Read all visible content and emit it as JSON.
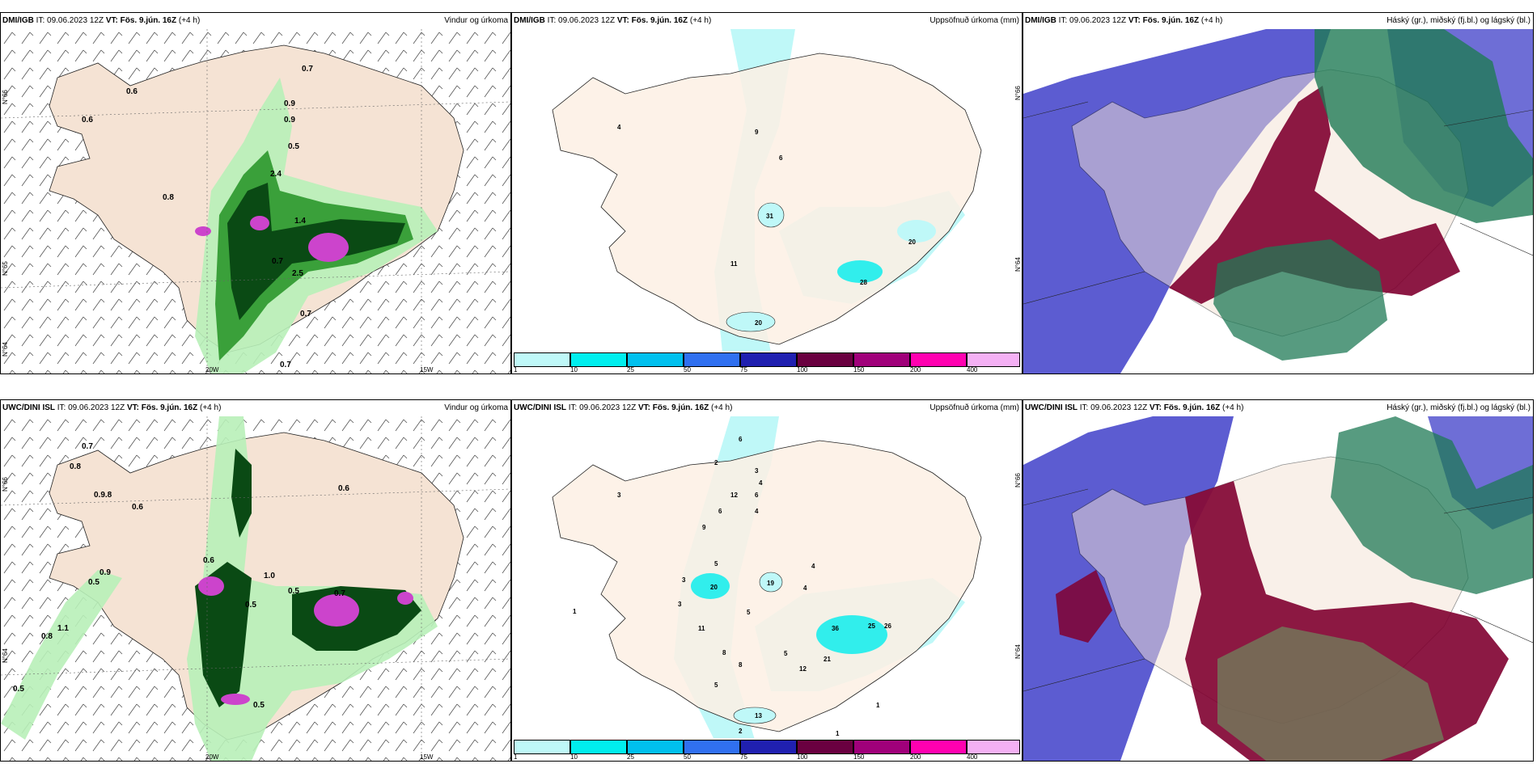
{
  "panels": [
    {
      "id": "top-left",
      "model": "DMI/IGB",
      "it": "IT: 09.06.2023 12Z",
      "vt": "VT: Fös. 9.jún. 16Z",
      "lead": "(+4 h)",
      "title": "Vindur og úrkoma",
      "labels": [
        "0.6",
        "0.6",
        "0.7",
        "0.9",
        "0.9",
        "0.5",
        "2.4",
        "0.8",
        "1.4",
        "0.7",
        "2.5",
        "0.7",
        "0.7"
      ],
      "axis": [
        "N°66",
        "N°65",
        "N°64",
        "20W",
        "15W"
      ]
    },
    {
      "id": "top-middle",
      "model": "DMI/IGB",
      "it": "IT: 09.06.2023 12Z",
      "vt": "VT: Fös. 9.jún. 16Z",
      "lead": "(+4 h)",
      "title": "Uppsöfnuð úrkoma (mm)",
      "labels": [
        "4",
        "9",
        "6",
        "31",
        "11",
        "20",
        "28",
        "20"
      ],
      "axis": [
        "N°66",
        "N°64"
      ]
    },
    {
      "id": "top-right",
      "model": "DMI/IGB",
      "it": "IT: 09.06.2023 12Z",
      "vt": "VT: Fös. 9.jún. 16Z",
      "lead": "(+4 h)",
      "title": "Háský (gr.), miðský (fj.bl.) og lágský (bl.)"
    },
    {
      "id": "bottom-left",
      "model": "UWC/DINI ISL",
      "it": "IT: 09.06.2023 12Z",
      "vt": "VT: Fös. 9.jún. 16Z",
      "lead": "(+4 h)",
      "title": "Vindur og úrkoma",
      "labels": [
        "0.7",
        "0.8",
        "0.9.8",
        "0.6",
        "0.6",
        "0.6",
        "0.9",
        "0.5",
        "1.1",
        "0.8",
        "0.5",
        "0.5",
        "0.7",
        "0.5",
        "0.5",
        "1.0"
      ],
      "axis": [
        "N°66",
        "N°64",
        "20W",
        "15W"
      ]
    },
    {
      "id": "bottom-middle",
      "model": "UWC/DINI ISL",
      "it": "IT: 09.06.2023 12Z",
      "vt": "VT: Fös. 9.jún. 16Z",
      "lead": "(+4 h)",
      "title": "Uppsöfnuð úrkoma (mm)",
      "labels": [
        "6",
        "2",
        "3",
        "4",
        "12",
        "6",
        "6",
        "4",
        "3",
        "9",
        "3",
        "5",
        "20",
        "19",
        "4",
        "3",
        "11",
        "5",
        "8",
        "36",
        "25",
        "26",
        "21",
        "12",
        "5",
        "8",
        "4",
        "5",
        "13",
        "2",
        "1",
        "1",
        "1"
      ],
      "axis": [
        "N°66",
        "N°64"
      ]
    },
    {
      "id": "bottom-right",
      "model": "UWC/DINI ISL",
      "it": "IT: 09.06.2023 12Z",
      "vt": "VT: Fös. 9.jún. 16Z",
      "lead": "(+4 h)",
      "title": "Háský (gr.), miðský (fj.bl.) og lágský (bl.)"
    }
  ],
  "colorbar": {
    "ticks": [
      "1",
      "10",
      "25",
      "50",
      "75",
      "100",
      "150",
      "200",
      "400"
    ],
    "colors": [
      "#bff8f8",
      "#00eeee",
      "#00c0ee",
      "#3070f0",
      "#2020b0",
      "#6a0040",
      "#a0007a",
      "#ff00b0",
      "#f4b0f4"
    ]
  },
  "palette": {
    "land": "#f5e3d4",
    "precip_light": "#b8f0b8",
    "precip_mid": "#3aa03a",
    "precip_dark": "#0a4a14",
    "precip_heavy": "#cc44cc",
    "accum_light": "#bff8f8",
    "accum_mid": "#00eeee",
    "cloud_high": "#1f7a55",
    "cloud_mid": "#800030",
    "cloud_low": "#4a4acc"
  }
}
